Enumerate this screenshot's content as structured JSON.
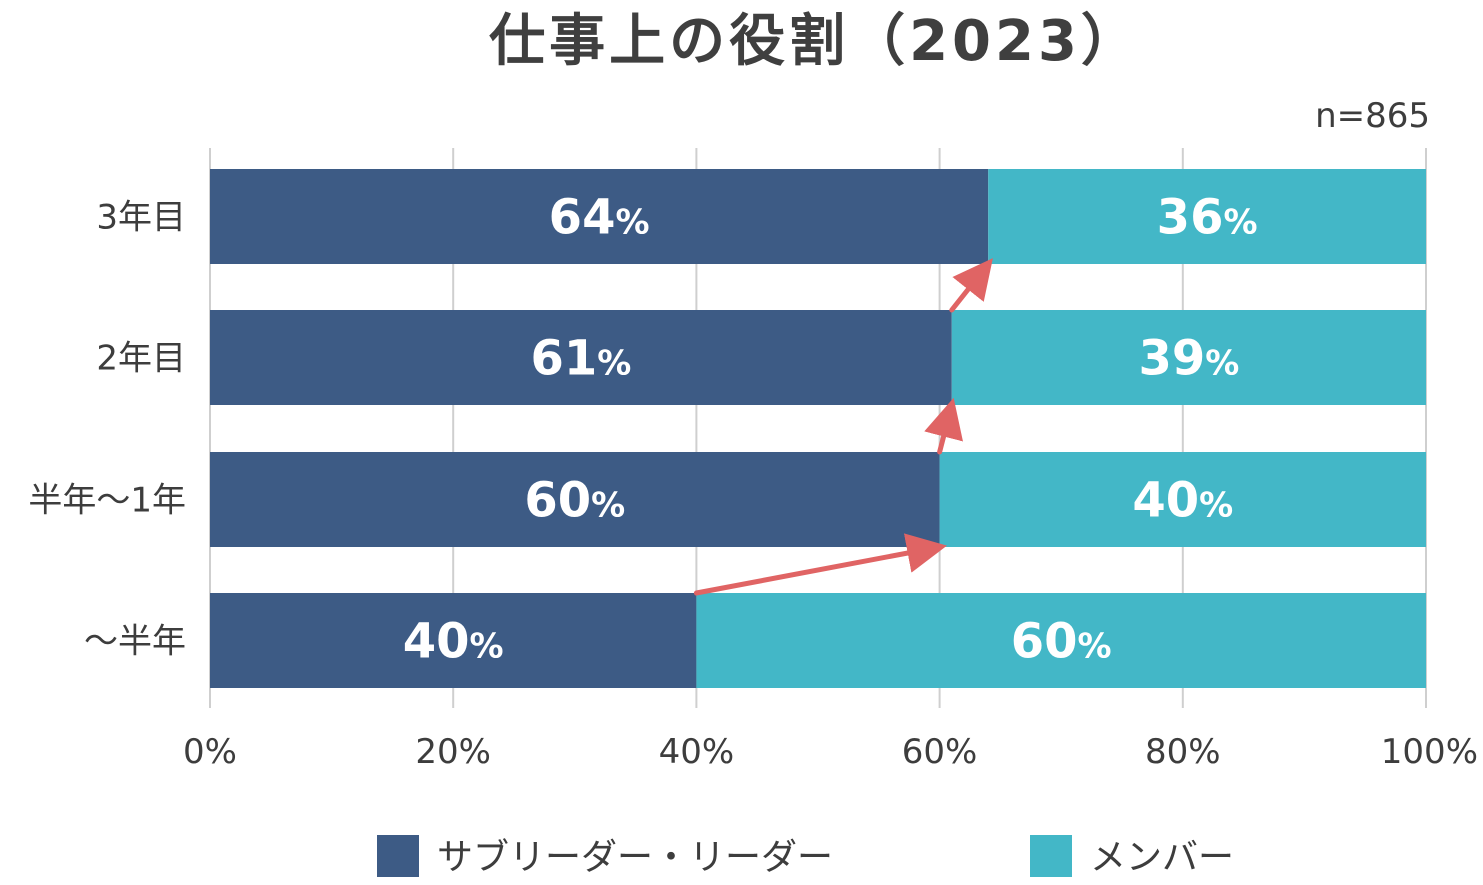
{
  "chart_data": {
    "type": "bar",
    "orientation": "horizontal",
    "stacked": true,
    "title": "仕事上の役割（2023）",
    "note": "n=865",
    "categories": [
      "3年目",
      "2年目",
      "半年～1年",
      "～半年"
    ],
    "series": [
      {
        "name": "サブリーダー・リーダー",
        "color": "#3d5b85",
        "values": [
          64,
          61,
          60,
          40
        ]
      },
      {
        "name": "メンバー",
        "color": "#43b7c7",
        "values": [
          36,
          39,
          40,
          60
        ]
      }
    ],
    "value_suffix": "%",
    "xlim": [
      0,
      100
    ],
    "xticks": [
      "0%",
      "20%",
      "40%",
      "60%",
      "80%",
      "100%"
    ],
    "grid": true,
    "legend_position": "bottom",
    "annotations": {
      "arrow_color": "#e06464",
      "arrows": "connect the sub-leader/leader share from each period to the next"
    }
  }
}
